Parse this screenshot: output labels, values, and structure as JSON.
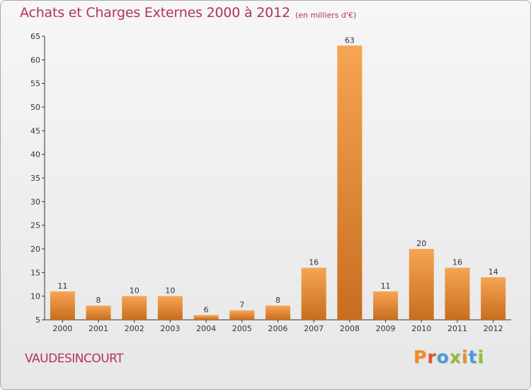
{
  "header": {
    "title": "Achats et Charges Externes 2000 à 2012",
    "subtitle": "(en milliers d'€)"
  },
  "footer": {
    "location": "VAUDESINCOURT",
    "brand": "Proxiti"
  },
  "colors": {
    "title": "#b5325a",
    "bar_light": "#f6a552",
    "bar_dark": "#c86d1f",
    "brand_letters": [
      "#f08a24",
      "#e84d2d",
      "#4a9ad8",
      "#8dbf3c",
      "#f08a24",
      "#4a9ad8",
      "#8dbf3c"
    ]
  },
  "chart_data": {
    "type": "bar",
    "categories": [
      "2000",
      "2001",
      "2002",
      "2003",
      "2004",
      "2005",
      "2006",
      "2007",
      "2008",
      "2009",
      "2010",
      "2011",
      "2012"
    ],
    "values": [
      11,
      8,
      10,
      10,
      6,
      7,
      8,
      16,
      63,
      11,
      20,
      16,
      14
    ],
    "title": "Achats et Charges Externes 2000 à 2012",
    "subtitle": "(en milliers d'€)",
    "xlabel": "",
    "ylabel": "",
    "ylim": [
      5,
      65
    ],
    "yticks": [
      5,
      10,
      15,
      20,
      25,
      30,
      35,
      40,
      45,
      50,
      55,
      60,
      65
    ],
    "grid": false,
    "legend": "none"
  }
}
